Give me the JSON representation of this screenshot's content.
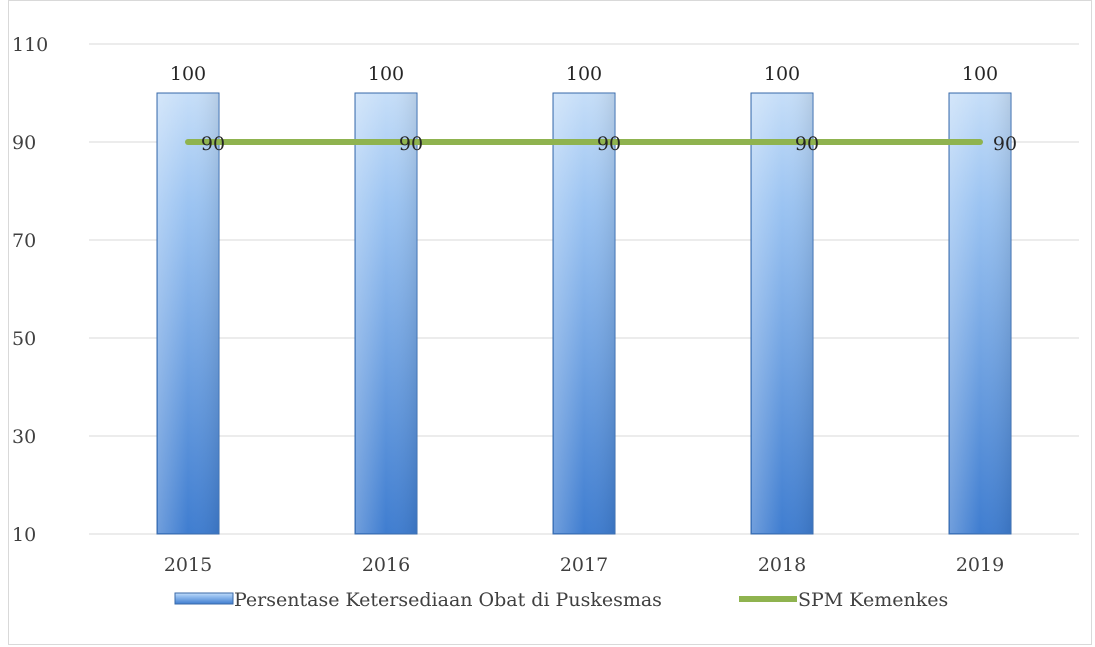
{
  "chart_data": {
    "type": "bar",
    "categories": [
      "2015",
      "2016",
      "2017",
      "2018",
      "2019"
    ],
    "series": [
      {
        "name": "Persentase Ketersediaan Obat di Puskesmas",
        "kind": "bar",
        "values": [
          100,
          100,
          100,
          100,
          100
        ],
        "color": "#4a86d4"
      },
      {
        "name": "SPM Kemenkes",
        "kind": "line",
        "values": [
          90,
          90,
          90,
          90,
          90
        ],
        "color": "#8fb34f"
      }
    ],
    "yticks": [
      10,
      30,
      50,
      70,
      90,
      110
    ],
    "ylim": [
      10,
      110
    ],
    "grid": true,
    "legend_position": "bottom",
    "title": "",
    "xlabel": "",
    "ylabel": ""
  }
}
